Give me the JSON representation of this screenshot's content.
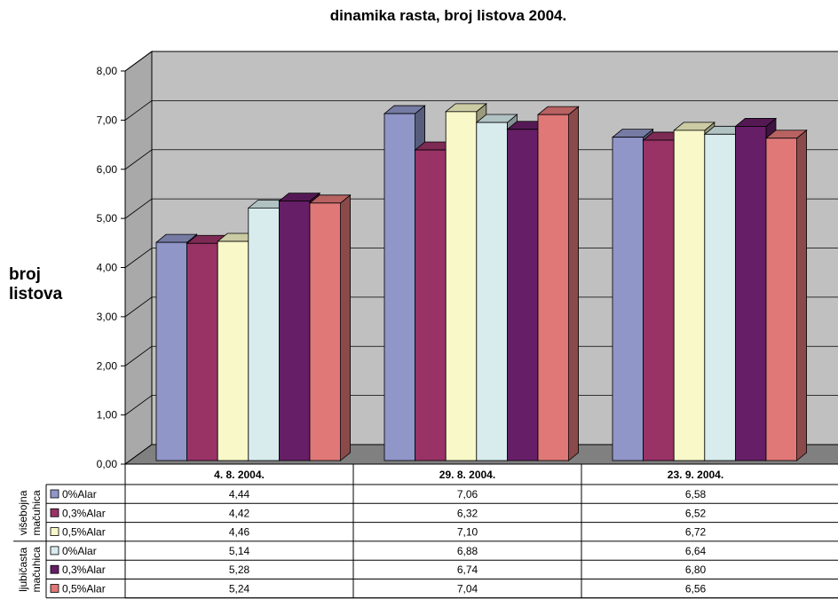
{
  "chart_data": {
    "type": "bar",
    "title": "dinamika rasta, broj listova 2004.",
    "ylabel": "broj listova",
    "xlabel": "",
    "ylim": [
      0,
      8
    ],
    "yticks": [
      "0,00",
      "1,00",
      "2,00",
      "3,00",
      "4,00",
      "5,00",
      "6,00",
      "7,00",
      "8,00"
    ],
    "grid": true,
    "categories": [
      "4. 8. 2004.",
      "29. 8. 2004.",
      "23. 9. 2004."
    ],
    "groups": [
      {
        "name_lines": [
          "višebojna",
          "mačuhica"
        ],
        "series": [
          0,
          1,
          2
        ]
      },
      {
        "name_lines": [
          "ljubičasta",
          "mačuhica"
        ],
        "series": [
          3,
          4,
          5
        ]
      }
    ],
    "series": [
      {
        "name": "0%Alar",
        "color": "#9096C8",
        "values": [
          4.44,
          7.06,
          6.58
        ],
        "labels": [
          "4,44",
          "7,06",
          "6,58"
        ]
      },
      {
        "name": "0,3%Alar",
        "color": "#993366",
        "values": [
          4.42,
          6.32,
          6.52
        ],
        "labels": [
          "4,42",
          "6,32",
          "6,52"
        ]
      },
      {
        "name": "0,5%Alar",
        "color": "#F8F8C8",
        "values": [
          4.46,
          7.1,
          6.72
        ],
        "labels": [
          "4,46",
          "7,10",
          "6,72"
        ]
      },
      {
        "name": "0%Alar",
        "color": "#D8ECEE",
        "values": [
          5.14,
          6.88,
          6.64
        ],
        "labels": [
          "5,14",
          "6,88",
          "6,64"
        ]
      },
      {
        "name": "0,3%Alar",
        "color": "#661E66",
        "values": [
          5.28,
          6.74,
          6.8
        ],
        "labels": [
          "5,28",
          "6,74",
          "6,80"
        ]
      },
      {
        "name": "0,5%Alar",
        "color": "#E07878",
        "values": [
          5.24,
          7.04,
          6.56
        ],
        "labels": [
          "5,24",
          "7,04",
          "6,56"
        ]
      }
    ],
    "colors": {
      "plot_wall": "#C0C0C0",
      "floor": "#808080",
      "gridline": "#000000"
    }
  }
}
